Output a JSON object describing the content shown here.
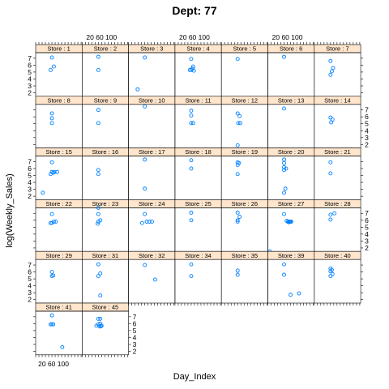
{
  "chart_data": {
    "type": "scatter",
    "title": "Dept: 77",
    "xlabel": "Day_Index",
    "ylabel": "log(Weekly_Sales)",
    "strip_prefix": "Store : ",
    "xlim": [
      0,
      143
    ],
    "ylim": [
      1.5,
      7.8
    ],
    "x_ticks": [
      20,
      60,
      100
    ],
    "y_ticks": [
      2,
      3,
      4,
      5,
      6,
      7
    ],
    "x_tick_label": "20 60 100",
    "grid": false,
    "layout": {
      "columns": 7,
      "rows": 6
    },
    "point_color": "#0080ff",
    "strip_color": "#ffe5cc",
    "panels": [
      {
        "store": 1,
        "points": [
          [
            50,
            7.1
          ],
          [
            56,
            5.8
          ],
          [
            46,
            5.3
          ]
        ]
      },
      {
        "store": 2,
        "points": [
          [
            50,
            7.2
          ],
          [
            50,
            5.3
          ]
        ]
      },
      {
        "store": 3,
        "points": [
          [
            50,
            7.1
          ],
          [
            28,
            2.5
          ]
        ]
      },
      {
        "store": 4,
        "points": [
          [
            50,
            6.9
          ],
          [
            56,
            5.8
          ],
          [
            54,
            5.5
          ],
          [
            50,
            5.3
          ],
          [
            58,
            5.2
          ],
          [
            46,
            5.3
          ]
        ]
      },
      {
        "store": 5,
        "points": [
          [
            50,
            6.9
          ]
        ]
      },
      {
        "store": 6,
        "points": [
          [
            50,
            7.2
          ]
        ]
      },
      {
        "store": 7,
        "points": [
          [
            50,
            6.6
          ],
          [
            58,
            5.6
          ],
          [
            54,
            5.1
          ],
          [
            50,
            4.6
          ]
        ]
      },
      {
        "store": 8,
        "points": [
          [
            50,
            6.5
          ],
          [
            50,
            5.8
          ],
          [
            50,
            5.1
          ]
        ]
      },
      {
        "store": 9,
        "points": [
          [
            50,
            7.0
          ],
          [
            50,
            5.1
          ]
        ]
      },
      {
        "store": 10,
        "points": [
          [
            50,
            7.5
          ]
        ]
      },
      {
        "store": 11,
        "points": [
          [
            50,
            6.9
          ],
          [
            50,
            6.2
          ],
          [
            56,
            5.1
          ],
          [
            50,
            5.1
          ]
        ]
      },
      {
        "store": 12,
        "points": [
          [
            50,
            6.5
          ],
          [
            56,
            6.1
          ],
          [
            52,
            5.1
          ],
          [
            58,
            5.1
          ],
          [
            50,
            1.9
          ]
        ]
      },
      {
        "store": 13,
        "points": [
          [
            50,
            7.2
          ]
        ]
      },
      {
        "store": 14,
        "points": [
          [
            50,
            5.9
          ],
          [
            56,
            5.6
          ],
          [
            52,
            5.2
          ]
        ]
      },
      {
        "store": 15,
        "points": [
          [
            50,
            6.9
          ],
          [
            66,
            5.5
          ],
          [
            58,
            5.5
          ],
          [
            54,
            5.4
          ],
          [
            50,
            5.5
          ],
          [
            46,
            5.2
          ],
          [
            22,
            2.5
          ]
        ]
      },
      {
        "store": 16,
        "points": [
          [
            50,
            5.8
          ],
          [
            50,
            5.2
          ]
        ]
      },
      {
        "store": 17,
        "points": [
          [
            50,
            7.3
          ],
          [
            50,
            3.1
          ]
        ]
      },
      {
        "store": 18,
        "points": [
          [
            50,
            7.2
          ],
          [
            50,
            6.0
          ]
        ]
      },
      {
        "store": 19,
        "points": [
          [
            50,
            6.9
          ],
          [
            54,
            6.8
          ],
          [
            50,
            6.5
          ],
          [
            50,
            5.2
          ]
        ]
      },
      {
        "store": 20,
        "points": [
          [
            50,
            7.3
          ],
          [
            50,
            6.8
          ],
          [
            50,
            6.2
          ],
          [
            56,
            6.0
          ],
          [
            50,
            5.8
          ],
          [
            54,
            3.1
          ],
          [
            50,
            2.5
          ]
        ]
      },
      {
        "store": 21,
        "points": [
          [
            50,
            6.9
          ],
          [
            50,
            5.3
          ]
        ]
      },
      {
        "store": 22,
        "points": [
          [
            50,
            6.9
          ],
          [
            56,
            5.8
          ],
          [
            62,
            5.8
          ],
          [
            46,
            5.6
          ],
          [
            50,
            5.6
          ]
        ]
      },
      {
        "store": 23,
        "points": [
          [
            50,
            7.8
          ],
          [
            50,
            6.9
          ],
          [
            56,
            6.0
          ],
          [
            50,
            5.8
          ],
          [
            48,
            5.5
          ]
        ]
      },
      {
        "store": 24,
        "points": [
          [
            50,
            6.9
          ],
          [
            72,
            5.8
          ],
          [
            64,
            5.8
          ],
          [
            56,
            5.8
          ],
          [
            42,
            5.6
          ]
        ]
      },
      {
        "store": 25,
        "points": [
          [
            50,
            7.1
          ],
          [
            50,
            6.0
          ]
        ]
      },
      {
        "store": 26,
        "points": [
          [
            50,
            7.1
          ],
          [
            56,
            6.5
          ],
          [
            50,
            6.0
          ],
          [
            50,
            5.8
          ]
        ]
      },
      {
        "store": 27,
        "points": [
          [
            50,
            6.9
          ],
          [
            58,
            5.9
          ],
          [
            62,
            5.8
          ],
          [
            64,
            5.7
          ],
          [
            66,
            5.8
          ],
          [
            68,
            5.8
          ],
          [
            70,
            5.8
          ],
          [
            72,
            5.8
          ],
          [
            6,
            1.5
          ]
        ]
      },
      {
        "store": 28,
        "points": [
          [
            50,
            6.8
          ],
          [
            62,
            7.0
          ],
          [
            50,
            6.1
          ]
        ]
      },
      {
        "store": 29,
        "points": [
          [
            50,
            6.0
          ],
          [
            54,
            5.5
          ],
          [
            50,
            5.4
          ]
        ]
      },
      {
        "store": 31,
        "points": [
          [
            50,
            7.1
          ],
          [
            56,
            5.8
          ],
          [
            50,
            5.4
          ],
          [
            56,
            2.6
          ]
        ]
      },
      {
        "store": 32,
        "points": [
          [
            50,
            7.0
          ],
          [
            82,
            4.9
          ]
        ]
      },
      {
        "store": 34,
        "points": [
          [
            50,
            7.1
          ],
          [
            50,
            5.4
          ]
        ]
      },
      {
        "store": 35,
        "points": [
          [
            50,
            6.2
          ],
          [
            50,
            5.6
          ]
        ]
      },
      {
        "store": 39,
        "points": [
          [
            50,
            7.1
          ],
          [
            50,
            5.6
          ],
          [
            70,
            2.7
          ],
          [
            96,
            2.9
          ]
        ]
      },
      {
        "store": 40,
        "points": [
          [
            50,
            6.5
          ],
          [
            54,
            6.3
          ],
          [
            50,
            6.1
          ],
          [
            56,
            5.7
          ],
          [
            50,
            5.4
          ]
        ]
      },
      {
        "store": 41,
        "points": [
          [
            50,
            7.2
          ],
          [
            46,
            5.9
          ],
          [
            50,
            5.9
          ],
          [
            54,
            5.9
          ],
          [
            82,
            2.6
          ]
        ]
      },
      {
        "store": 45,
        "points": [
          [
            56,
            6.7
          ],
          [
            50,
            6.7
          ],
          [
            56,
            6.0
          ],
          [
            50,
            5.9
          ],
          [
            44,
            5.7
          ],
          [
            60,
            5.7
          ],
          [
            54,
            5.6
          ],
          [
            58,
            5.6
          ]
        ]
      }
    ]
  }
}
